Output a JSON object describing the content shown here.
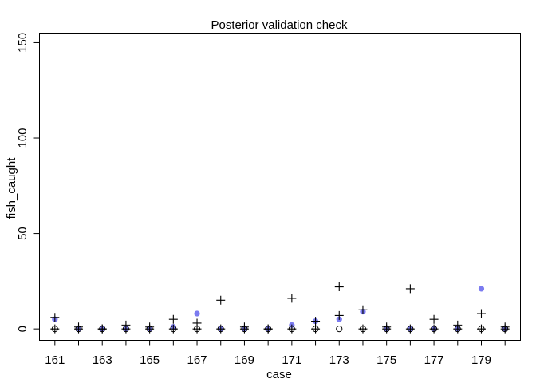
{
  "chart_data": {
    "type": "scatter",
    "title": "Posterior validation check",
    "xlabel": "case",
    "ylabel": "fish_caught",
    "xlim": [
      160.35,
      180.65
    ],
    "ylim": [
      -6,
      155
    ],
    "x_ticks": [
      161,
      162,
      163,
      164,
      165,
      166,
      167,
      168,
      169,
      170,
      171,
      172,
      173,
      174,
      175,
      176,
      177,
      178,
      179,
      180
    ],
    "x_tick_labels": [
      "161",
      "",
      "163",
      "",
      "165",
      "",
      "167",
      "",
      "169",
      "",
      "171",
      "",
      "173",
      "",
      "175",
      "",
      "177",
      "",
      "179",
      ""
    ],
    "y_ticks": [
      0,
      50,
      100,
      150
    ],
    "y_tick_labels": [
      "0",
      "50",
      "100",
      "150"
    ],
    "grid": false,
    "colors": {
      "observed": "#7b7bf0",
      "interval": "#000000",
      "mean": "#000000"
    },
    "series": [
      {
        "marker": "filled-circle",
        "x": [
          161,
          162,
          163,
          164,
          165,
          166,
          167,
          168,
          169,
          170,
          171,
          172,
          173,
          174,
          175,
          176,
          177,
          178,
          179,
          180
        ],
        "y": [
          5,
          0,
          0,
          0,
          0,
          1,
          8,
          0,
          0,
          0,
          2,
          4,
          5,
          9,
          0,
          0,
          0,
          0,
          21,
          0
        ]
      },
      {
        "marker": "open-circle",
        "x": [
          161,
          162,
          163,
          164,
          165,
          166,
          167,
          168,
          169,
          170,
          171,
          172,
          173,
          174,
          175,
          176,
          177,
          178,
          179,
          180
        ],
        "y": [
          0,
          0,
          0,
          0,
          0,
          0,
          0,
          0,
          0,
          0,
          0,
          0,
          0,
          0,
          0,
          0,
          0,
          0,
          0,
          0
        ]
      },
      {
        "marker": "plus",
        "x": [
          161,
          162,
          163,
          164,
          165,
          166,
          167,
          168,
          169,
          170,
          171,
          172,
          173,
          174,
          175,
          176,
          177,
          178,
          179,
          180
        ],
        "y": [
          6,
          1,
          0,
          2,
          1,
          5,
          3,
          15,
          1,
          0,
          16,
          4,
          22,
          10,
          1,
          21,
          5,
          2,
          8,
          1
        ]
      },
      {
        "marker": "plus",
        "x": [
          161,
          162,
          163,
          164,
          165,
          166,
          167,
          168,
          169,
          170,
          171,
          172,
          173,
          174,
          175,
          176,
          177,
          178,
          179,
          180
        ],
        "y": [
          0,
          0,
          0,
          0,
          0,
          0,
          0,
          0,
          0,
          0,
          0,
          0,
          7,
          0,
          0,
          0,
          0,
          0,
          0,
          0
        ]
      }
    ]
  }
}
